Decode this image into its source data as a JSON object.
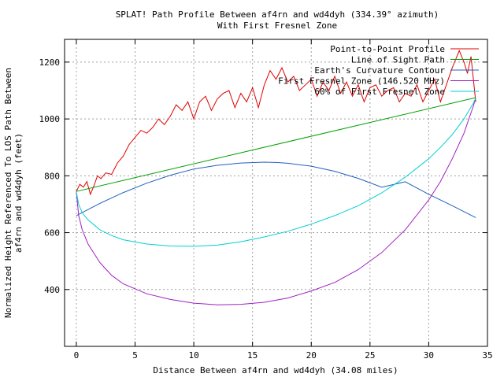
{
  "chart_data": {
    "type": "line",
    "title": "SPLAT! Path Profile Between af4rn and wd4dyh (334.39° azimuth)",
    "subtitle": "With First Fresnel Zone",
    "xlabel": "Distance Between af4rn and wd4dyh (34.08 miles)",
    "ylabel": "Normalized Height Referenced To LOS Path Between af4rn and wd4dyh (feet)",
    "xlim": [
      -1,
      35
    ],
    "ylim": [
      200,
      1280
    ],
    "xticks": [
      0,
      5,
      10,
      15,
      20,
      25,
      30,
      35
    ],
    "yticks": [
      400,
      600,
      800,
      1000,
      1200
    ],
    "grid": true,
    "legend_position": "top-right",
    "series": [
      {
        "name": "Point-to-Point Profile",
        "color": "#e00000",
        "x": [
          0,
          0.3,
          0.6,
          0.9,
          1.2,
          1.5,
          1.8,
          2.1,
          2.5,
          3.0,
          3.5,
          4.0,
          4.5,
          5.0,
          5.5,
          6.0,
          6.5,
          7.0,
          7.5,
          8.0,
          8.5,
          9.0,
          9.5,
          10.0,
          10.5,
          11.0,
          11.5,
          12.0,
          12.5,
          13.0,
          13.5,
          14.0,
          14.5,
          15.0,
          15.5,
          16.0,
          16.5,
          17.0,
          17.5,
          18.0,
          18.5,
          19.0,
          19.5,
          20.0,
          20.5,
          21.0,
          21.5,
          22.0,
          22.5,
          23.0,
          23.5,
          24.0,
          24.5,
          25.0,
          25.5,
          26.0,
          26.5,
          27.0,
          27.5,
          28.0,
          28.5,
          29.0,
          29.5,
          30.0,
          30.5,
          31.0,
          31.5,
          32.0,
          32.3,
          32.6,
          33.0,
          33.3,
          33.6,
          34.0
        ],
        "values": [
          745,
          770,
          760,
          780,
          735,
          765,
          800,
          790,
          810,
          805,
          845,
          870,
          910,
          935,
          960,
          950,
          970,
          1000,
          980,
          1010,
          1050,
          1030,
          1060,
          1000,
          1060,
          1080,
          1030,
          1070,
          1090,
          1100,
          1040,
          1090,
          1060,
          1110,
          1040,
          1120,
          1170,
          1140,
          1180,
          1130,
          1150,
          1100,
          1120,
          1140,
          1080,
          1130,
          1100,
          1150,
          1090,
          1130,
          1080,
          1120,
          1060,
          1110,
          1120,
          1080,
          1100,
          1110,
          1060,
          1090,
          1080,
          1120,
          1060,
          1100,
          1140,
          1060,
          1120,
          1180,
          1210,
          1240,
          1200,
          1160,
          1220,
          1060
        ]
      },
      {
        "name": "Line of Sight Path",
        "color": "#00a000",
        "x": [
          0,
          34
        ],
        "values": [
          745,
          1075
        ]
      },
      {
        "name": "Earth's Curvature Contour",
        "color": "#2060c0",
        "x": [
          0,
          2,
          4,
          6,
          8,
          10,
          12,
          14,
          16,
          17,
          18,
          20,
          22,
          24,
          26,
          28,
          30,
          32,
          34
        ],
        "values": [
          660,
          703,
          741,
          774,
          802,
          824,
          837,
          845,
          848,
          847,
          844,
          834,
          816,
          791,
          760,
          779,
          735,
          695,
          653
        ]
      },
      {
        "name": "First Fresnel Zone (146.520 MHz)",
        "color": "#a020c0",
        "x": [
          0,
          0.2,
          0.5,
          1,
          2,
          3,
          4,
          6,
          8,
          10,
          12,
          14,
          16,
          18,
          20,
          22,
          24,
          26,
          28,
          30,
          31,
          32,
          33,
          33.5,
          33.8,
          34
        ],
        "values": [
          745,
          660,
          610,
          560,
          495,
          450,
          420,
          385,
          365,
          352,
          346,
          348,
          355,
          370,
          395,
          425,
          470,
          530,
          610,
          715,
          780,
          860,
          950,
          1010,
          1045,
          1075
        ]
      },
      {
        "name": "60% of First Fresnel Zone",
        "color": "#00d0d0",
        "x": [
          0,
          0.2,
          0.5,
          1,
          2,
          3,
          4,
          6,
          8,
          10,
          12,
          14,
          16,
          18,
          20,
          22,
          24,
          26,
          28,
          30,
          31,
          32,
          33,
          33.5,
          33.8,
          34
        ],
        "values": [
          745,
          700,
          670,
          645,
          610,
          590,
          575,
          560,
          553,
          552,
          556,
          568,
          585,
          605,
          630,
          660,
          695,
          740,
          795,
          860,
          900,
          945,
          1000,
          1035,
          1055,
          1075
        ]
      }
    ]
  }
}
